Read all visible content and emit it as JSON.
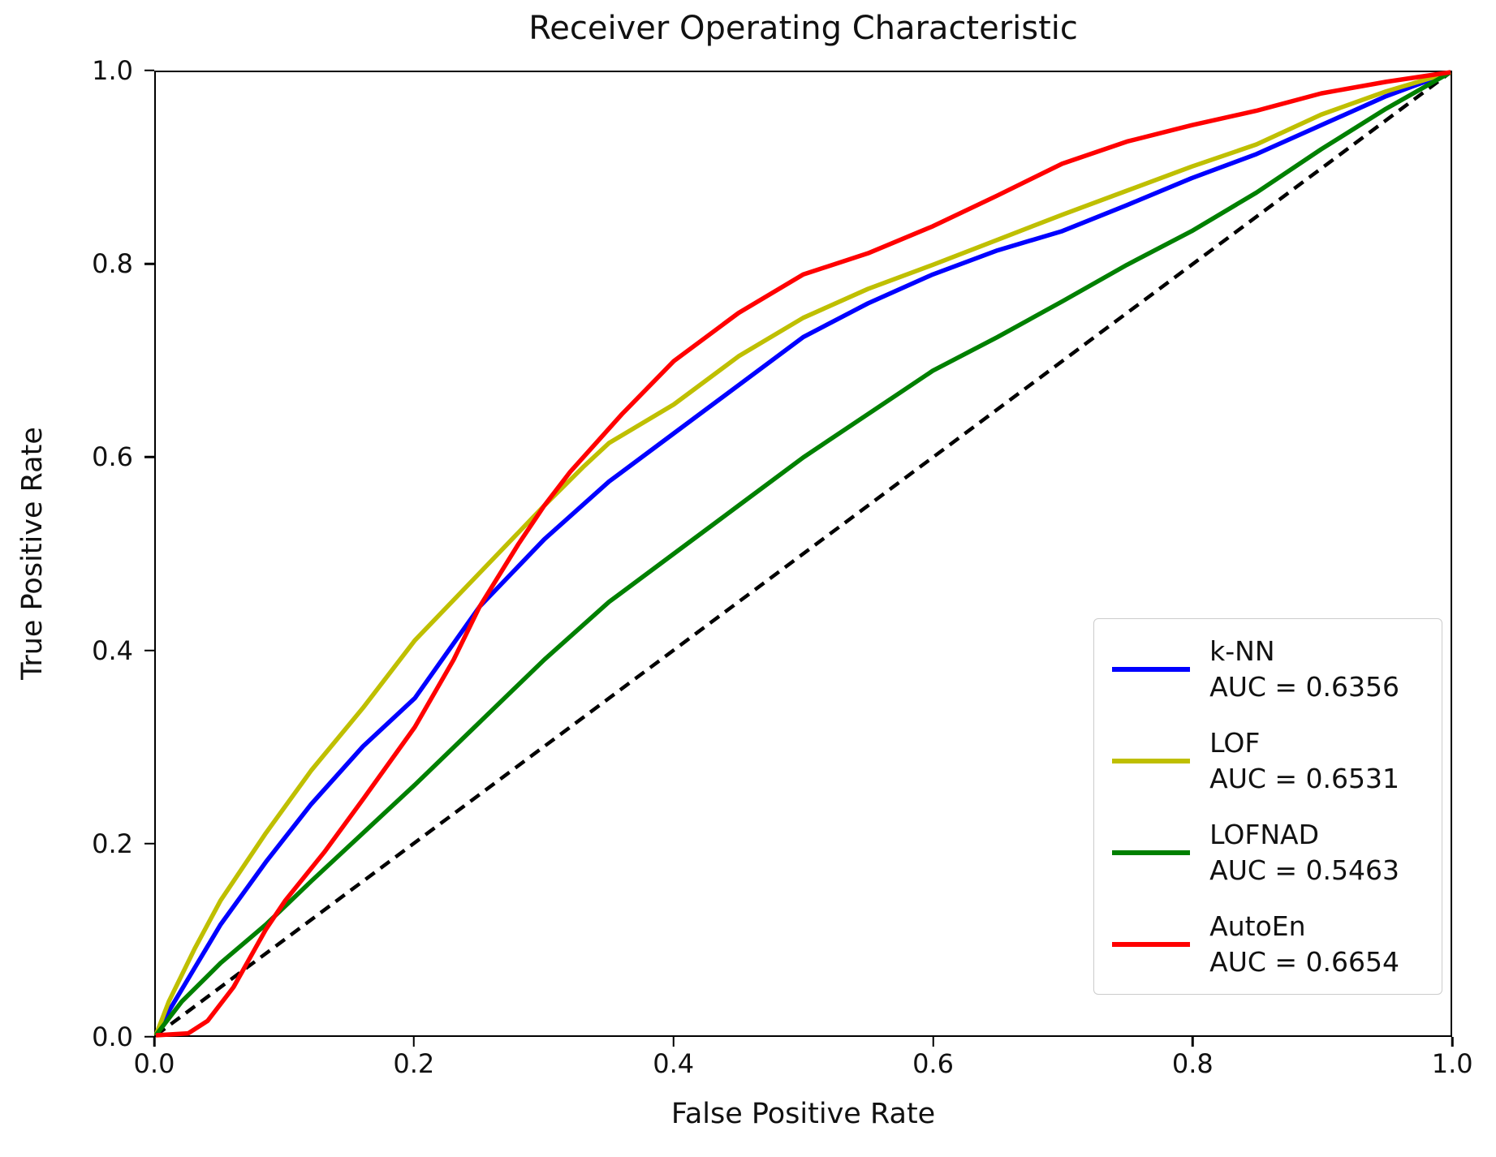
{
  "chart_data": {
    "type": "line",
    "title": "Receiver Operating Characteristic",
    "xlabel": "False Positive Rate",
    "ylabel": "True Positive Rate",
    "xlim": [
      0.0,
      1.0
    ],
    "ylim": [
      0.0,
      1.0
    ],
    "x_ticks": [
      "0.0",
      "0.2",
      "0.4",
      "0.6",
      "0.8",
      "1.0"
    ],
    "y_ticks": [
      "0.0",
      "0.2",
      "0.4",
      "0.6",
      "0.8",
      "1.0"
    ],
    "grid": false,
    "legend_position": "lower right",
    "series": [
      {
        "name": "k-NN",
        "auc": 0.6356,
        "auc_label": "AUC = 0.6356",
        "color": "#0000ff",
        "points": [
          [
            0,
            0
          ],
          [
            0.01,
            0.025
          ],
          [
            0.03,
            0.07
          ],
          [
            0.05,
            0.115
          ],
          [
            0.085,
            0.18
          ],
          [
            0.12,
            0.24
          ],
          [
            0.16,
            0.3
          ],
          [
            0.2,
            0.35
          ],
          [
            0.25,
            0.445
          ],
          [
            0.3,
            0.515
          ],
          [
            0.35,
            0.575
          ],
          [
            0.4,
            0.625
          ],
          [
            0.45,
            0.675
          ],
          [
            0.5,
            0.725
          ],
          [
            0.55,
            0.76
          ],
          [
            0.6,
            0.79
          ],
          [
            0.65,
            0.815
          ],
          [
            0.7,
            0.835
          ],
          [
            0.75,
            0.862
          ],
          [
            0.8,
            0.89
          ],
          [
            0.85,
            0.915
          ],
          [
            0.9,
            0.945
          ],
          [
            0.95,
            0.975
          ],
          [
            1,
            1
          ]
        ]
      },
      {
        "name": "LOF",
        "auc": 0.6531,
        "auc_label": "AUC = 0.6531",
        "color": "#bfbf00",
        "points": [
          [
            0,
            0
          ],
          [
            0.01,
            0.035
          ],
          [
            0.03,
            0.09
          ],
          [
            0.05,
            0.14
          ],
          [
            0.085,
            0.21
          ],
          [
            0.12,
            0.275
          ],
          [
            0.16,
            0.34
          ],
          [
            0.2,
            0.41
          ],
          [
            0.25,
            0.48
          ],
          [
            0.3,
            0.55
          ],
          [
            0.33,
            0.59
          ],
          [
            0.35,
            0.615
          ],
          [
            0.4,
            0.655
          ],
          [
            0.45,
            0.705
          ],
          [
            0.5,
            0.745
          ],
          [
            0.55,
            0.775
          ],
          [
            0.6,
            0.8
          ],
          [
            0.65,
            0.826
          ],
          [
            0.7,
            0.852
          ],
          [
            0.75,
            0.877
          ],
          [
            0.8,
            0.902
          ],
          [
            0.85,
            0.925
          ],
          [
            0.9,
            0.956
          ],
          [
            0.95,
            0.98
          ],
          [
            1,
            1
          ]
        ]
      },
      {
        "name": "LOFNAD",
        "auc": 0.5463,
        "auc_label": "AUC = 0.5463",
        "color": "#008000",
        "points": [
          [
            0,
            0
          ],
          [
            0.02,
            0.035
          ],
          [
            0.05,
            0.075
          ],
          [
            0.085,
            0.115
          ],
          [
            0.12,
            0.16
          ],
          [
            0.16,
            0.21
          ],
          [
            0.2,
            0.26
          ],
          [
            0.25,
            0.325
          ],
          [
            0.3,
            0.39
          ],
          [
            0.35,
            0.45
          ],
          [
            0.4,
            0.5
          ],
          [
            0.45,
            0.55
          ],
          [
            0.5,
            0.6
          ],
          [
            0.55,
            0.645
          ],
          [
            0.6,
            0.69
          ],
          [
            0.65,
            0.725
          ],
          [
            0.7,
            0.762
          ],
          [
            0.75,
            0.8
          ],
          [
            0.8,
            0.835
          ],
          [
            0.85,
            0.875
          ],
          [
            0.9,
            0.92
          ],
          [
            0.95,
            0.962
          ],
          [
            1,
            1
          ]
        ]
      },
      {
        "name": "AutoEn",
        "auc": 0.6654,
        "auc_label": "AUC = 0.6654",
        "color": "#ff0000",
        "points": [
          [
            0,
            0
          ],
          [
            0.025,
            0.002
          ],
          [
            0.04,
            0.015
          ],
          [
            0.06,
            0.05
          ],
          [
            0.085,
            0.11
          ],
          [
            0.1,
            0.14
          ],
          [
            0.13,
            0.19
          ],
          [
            0.16,
            0.245
          ],
          [
            0.2,
            0.32
          ],
          [
            0.23,
            0.39
          ],
          [
            0.25,
            0.445
          ],
          [
            0.28,
            0.51
          ],
          [
            0.3,
            0.55
          ],
          [
            0.32,
            0.585
          ],
          [
            0.34,
            0.615
          ],
          [
            0.36,
            0.645
          ],
          [
            0.4,
            0.7
          ],
          [
            0.45,
            0.75
          ],
          [
            0.5,
            0.79
          ],
          [
            0.55,
            0.812
          ],
          [
            0.6,
            0.84
          ],
          [
            0.65,
            0.872
          ],
          [
            0.7,
            0.905
          ],
          [
            0.75,
            0.928
          ],
          [
            0.8,
            0.945
          ],
          [
            0.85,
            0.96
          ],
          [
            0.9,
            0.978
          ],
          [
            0.95,
            0.99
          ],
          [
            1,
            1
          ]
        ]
      }
    ],
    "reference_line": {
      "name": "chance-diagonal",
      "style": "dashed",
      "color": "#000000",
      "points": [
        [
          0,
          0
        ],
        [
          1,
          1
        ]
      ]
    }
  }
}
